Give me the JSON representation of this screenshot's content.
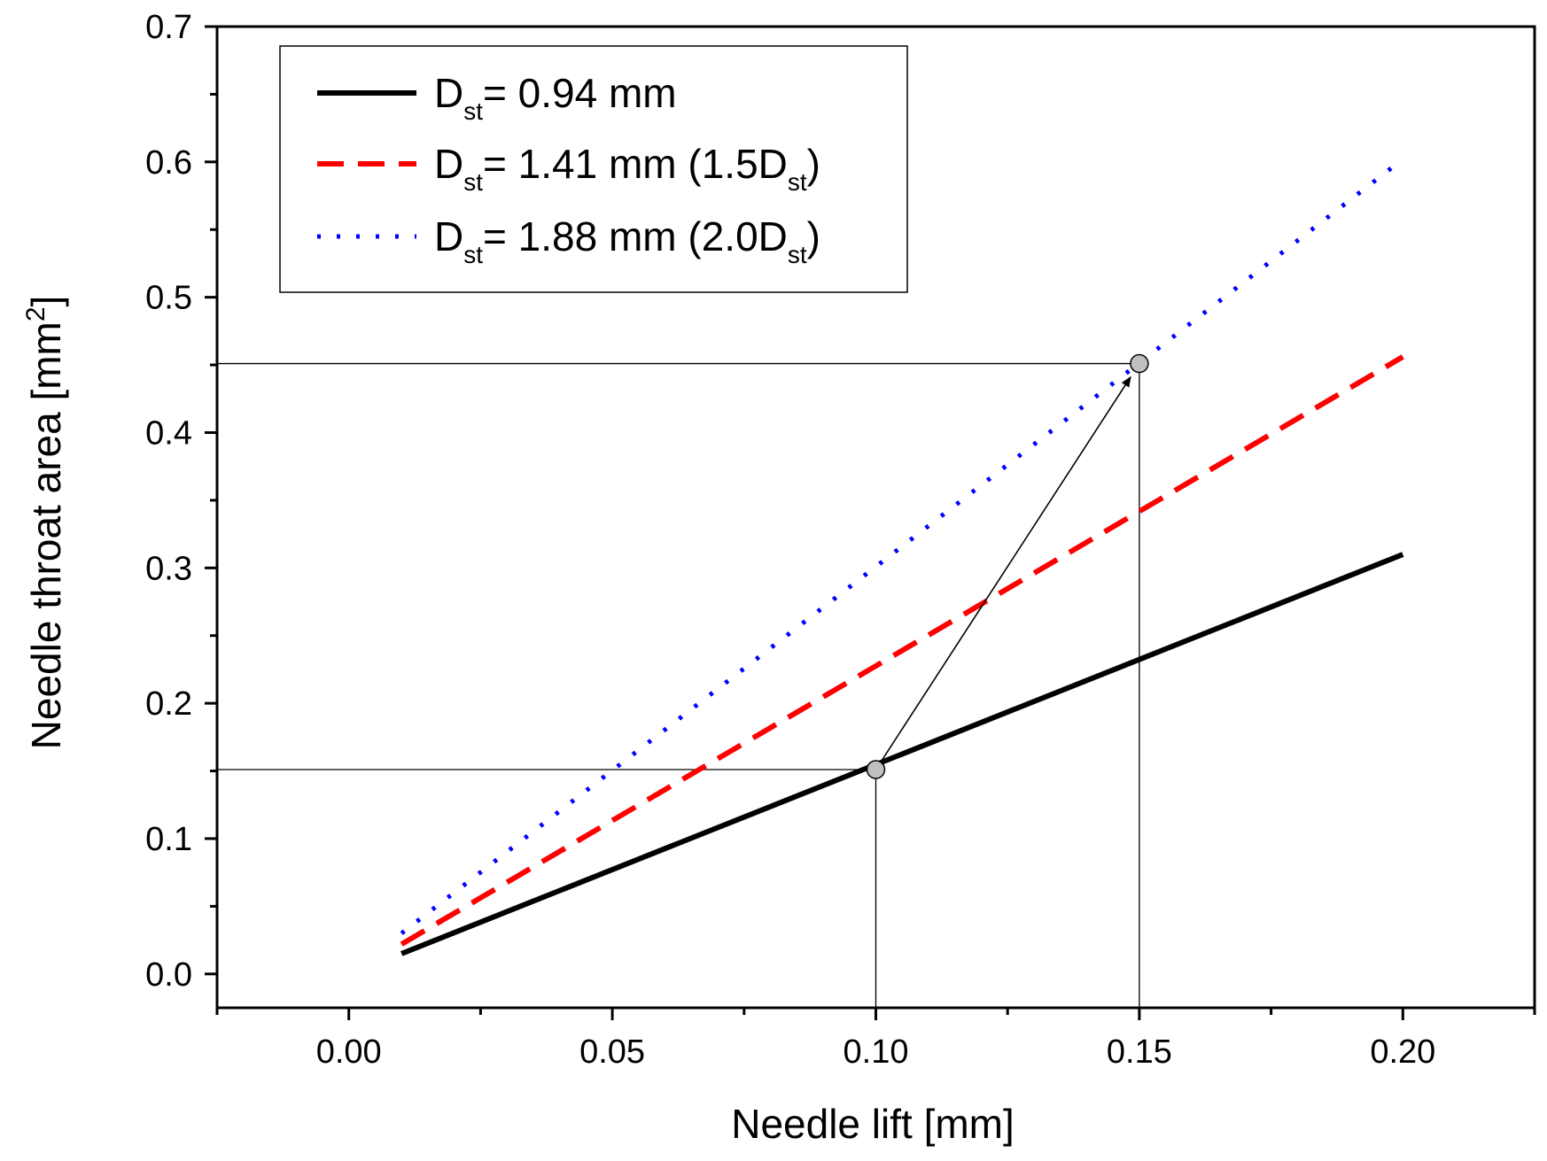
{
  "chart_data": {
    "type": "line",
    "xlabel": "Needle lift [mm]",
    "ylabel": {
      "text": "Needle throat area [mm",
      "sup": "2",
      "suffix": "]"
    },
    "xlim": [
      -0.025,
      0.225
    ],
    "ylim": [
      -0.025,
      0.7
    ],
    "xticks": [
      0.0,
      0.05,
      0.1,
      0.15,
      0.2
    ],
    "xtick_labels": [
      "0.00",
      "0.05",
      "0.10",
      "0.15",
      "0.20"
    ],
    "yticks": [
      0.0,
      0.1,
      0.2,
      0.3,
      0.4,
      0.5,
      0.6,
      0.7
    ],
    "ytick_labels": [
      "0.0",
      "0.1",
      "0.2",
      "0.3",
      "0.4",
      "0.5",
      "0.6",
      "0.7"
    ],
    "series": [
      {
        "name": "D_st = 0.94 mm",
        "label": {
          "main": "D",
          "sub": "st",
          "rest": "= 0.94 mm",
          "sub2": "",
          "close": ""
        },
        "color": "#000000",
        "style": "solid",
        "x": [
          0.01,
          0.2
        ],
        "y": [
          0.015,
          0.31
        ]
      },
      {
        "name": "D_st = 1.41 mm (1.5D_st)",
        "label": {
          "main": "D",
          "sub": "st",
          "rest": "= 1.41 mm (1.5D",
          "sub2": "st",
          "close": ")"
        },
        "color": "#ff0000",
        "style": "dashed",
        "x": [
          0.01,
          0.2
        ],
        "y": [
          0.022,
          0.456
        ]
      },
      {
        "name": "D_st = 1.88 mm (2.0D_st)",
        "label": {
          "main": "D",
          "sub": "st",
          "rest": "= 1.88 mm (2.0D",
          "sub2": "st",
          "close": ")"
        },
        "color": "#0000ff",
        "style": "dotted",
        "x": [
          0.01,
          0.2
        ],
        "y": [
          0.03,
          0.602
        ]
      }
    ],
    "reference_lines": [
      {
        "from": [
          -0.025,
          0.151
        ],
        "to": [
          0.1,
          0.151
        ]
      },
      {
        "from": [
          0.1,
          -0.025
        ],
        "to": [
          0.1,
          0.151
        ]
      },
      {
        "from": [
          -0.025,
          0.451
        ],
        "to": [
          0.15,
          0.451
        ]
      },
      {
        "from": [
          0.15,
          -0.025
        ],
        "to": [
          0.15,
          0.451
        ]
      }
    ],
    "markers": [
      {
        "x": 0.1,
        "y": 0.151
      },
      {
        "x": 0.15,
        "y": 0.451
      }
    ],
    "arrow": {
      "from": [
        0.1,
        0.151
      ],
      "to": [
        0.15,
        0.451
      ]
    },
    "legend_position": "top-left",
    "grid": false
  }
}
